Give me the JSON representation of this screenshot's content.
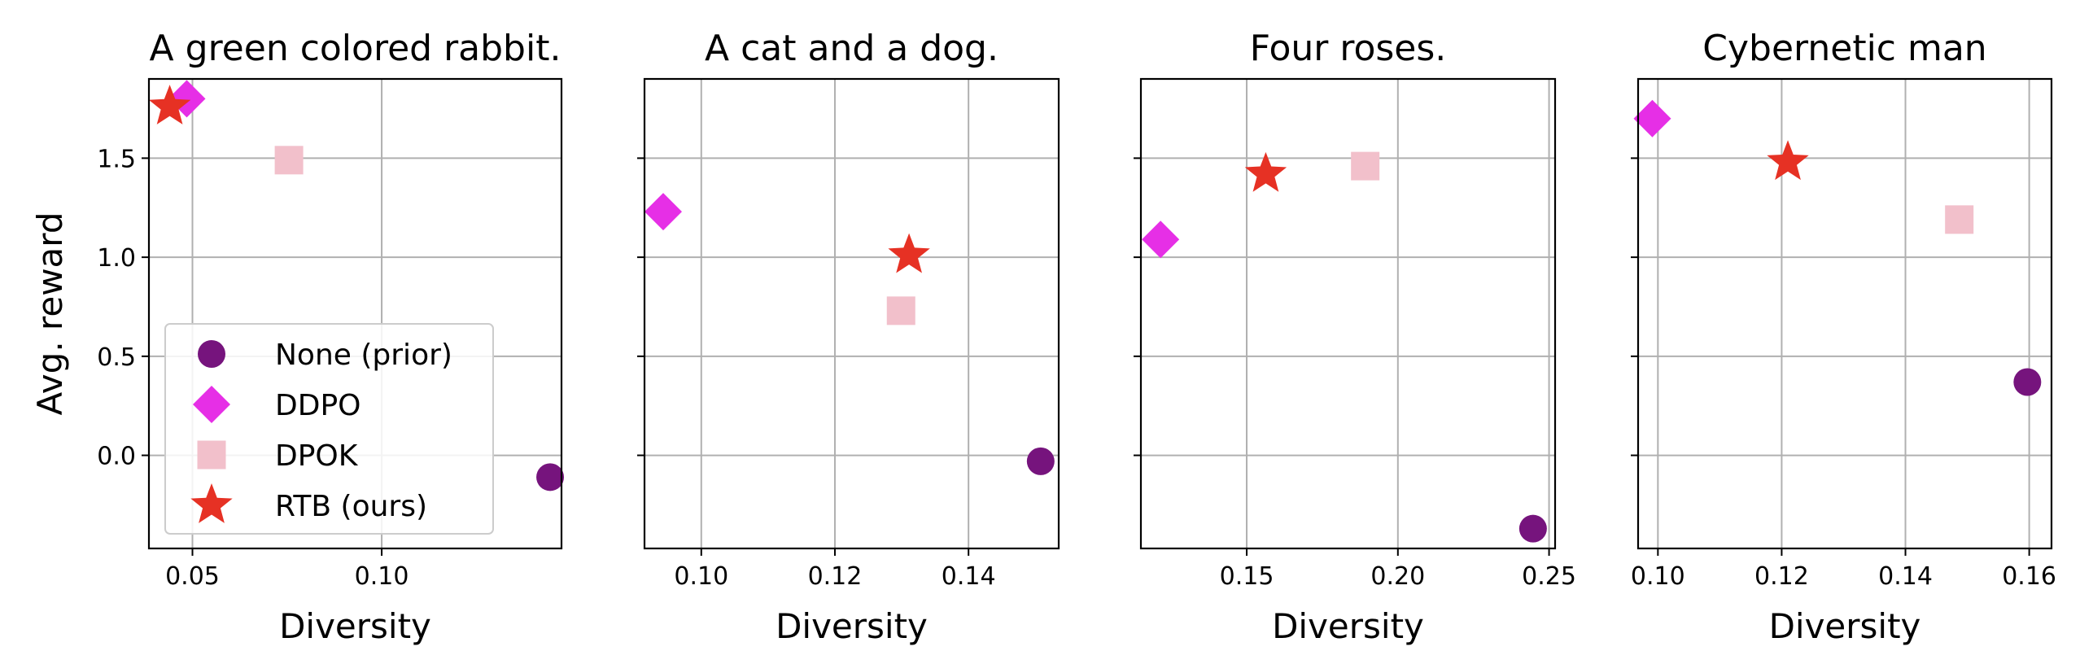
{
  "chart_data": [
    {
      "type": "scatter",
      "title": "A green colored rabbit.",
      "xlabel": "Diversity",
      "ylabel": "Avg. reward",
      "xlim": [
        0.0385,
        0.1475
      ],
      "ylim": [
        -0.47,
        1.9
      ],
      "xticks": [
        0.05,
        0.1
      ],
      "xtick_labels": [
        "0.05",
        "0.10"
      ],
      "yticks": [
        -0.0,
        0.5,
        1.0,
        1.5
      ],
      "ytick_labels": [
        "0.0",
        "0.5",
        "1.0",
        "1.5"
      ],
      "grid": true,
      "legend": "lower-left",
      "series": [
        {
          "name": "None (prior)",
          "x": [
            0.1445
          ],
          "y": [
            -0.11
          ]
        },
        {
          "name": "DDPO",
          "x": [
            0.0485
          ],
          "y": [
            1.8
          ]
        },
        {
          "name": "DPOK",
          "x": [
            0.0755
          ],
          "y": [
            1.49
          ]
        },
        {
          "name": "RTB (ours)",
          "x": [
            0.044
          ],
          "y": [
            1.76
          ]
        }
      ]
    },
    {
      "type": "scatter",
      "title": "A cat and a dog.",
      "xlabel": "Diversity",
      "ylabel": "",
      "xlim": [
        0.0915,
        0.1535
      ],
      "ylim": [
        -0.47,
        1.9
      ],
      "xticks": [
        0.1,
        0.12,
        0.14
      ],
      "xtick_labels": [
        "0.10",
        "0.12",
        "0.14"
      ],
      "yticks": [
        -0.0,
        0.5,
        1.0,
        1.5
      ],
      "ytick_labels": [],
      "grid": true,
      "series": [
        {
          "name": "None (prior)",
          "x": [
            0.1508
          ],
          "y": [
            -0.03
          ]
        },
        {
          "name": "DDPO",
          "x": [
            0.0943
          ],
          "y": [
            1.23
          ]
        },
        {
          "name": "DPOK",
          "x": [
            0.1299
          ],
          "y": [
            0.73
          ]
        },
        {
          "name": "RTB (ours)",
          "x": [
            0.1311
          ],
          "y": [
            1.01
          ]
        }
      ]
    },
    {
      "type": "scatter",
      "title": "Four roses.",
      "xlabel": "Diversity",
      "ylabel": "",
      "xlim": [
        0.115,
        0.252
      ],
      "ylim": [
        -0.47,
        1.9
      ],
      "xticks": [
        0.15,
        0.2,
        0.25
      ],
      "xtick_labels": [
        "0.15",
        "0.20",
        "0.25"
      ],
      "yticks": [
        -0.0,
        0.5,
        1.0,
        1.5
      ],
      "ytick_labels": [],
      "grid": true,
      "series": [
        {
          "name": "None (prior)",
          "x": [
            0.2447
          ],
          "y": [
            -0.37
          ]
        },
        {
          "name": "DDPO",
          "x": [
            0.1215
          ],
          "y": [
            1.09
          ]
        },
        {
          "name": "DPOK",
          "x": [
            0.1892
          ],
          "y": [
            1.46
          ]
        },
        {
          "name": "RTB (ours)",
          "x": [
            0.1563
          ],
          "y": [
            1.42
          ]
        }
      ]
    },
    {
      "type": "scatter",
      "title": "Cybernetic man",
      "xlabel": "Diversity",
      "ylabel": "",
      "xlim": [
        0.0968,
        0.1636
      ],
      "ylim": [
        -0.47,
        1.9
      ],
      "xticks": [
        0.1,
        0.12,
        0.14,
        0.16
      ],
      "xtick_labels": [
        "0.10",
        "0.12",
        "0.14",
        "0.16"
      ],
      "yticks": [
        -0.0,
        0.5,
        1.0,
        1.5
      ],
      "ytick_labels": [],
      "grid": true,
      "series": [
        {
          "name": "None (prior)",
          "x": [
            0.1597
          ],
          "y": [
            0.37
          ]
        },
        {
          "name": "DDPO",
          "x": [
            0.0991
          ],
          "y": [
            1.7
          ]
        },
        {
          "name": "DPOK",
          "x": [
            0.1487
          ],
          "y": [
            1.19
          ]
        },
        {
          "name": "RTB (ours)",
          "x": [
            0.121
          ],
          "y": [
            1.48
          ]
        }
      ]
    }
  ],
  "styles": {
    "None (prior)": {
      "marker": "circle",
      "color": "#76147d"
    },
    "DDPO": {
      "marker": "diamond",
      "color": "#e62fe6"
    },
    "DPOK": {
      "marker": "square",
      "color": "#f2c0cb"
    },
    "RTB (ours)": {
      "marker": "star",
      "color": "#e63124"
    }
  }
}
